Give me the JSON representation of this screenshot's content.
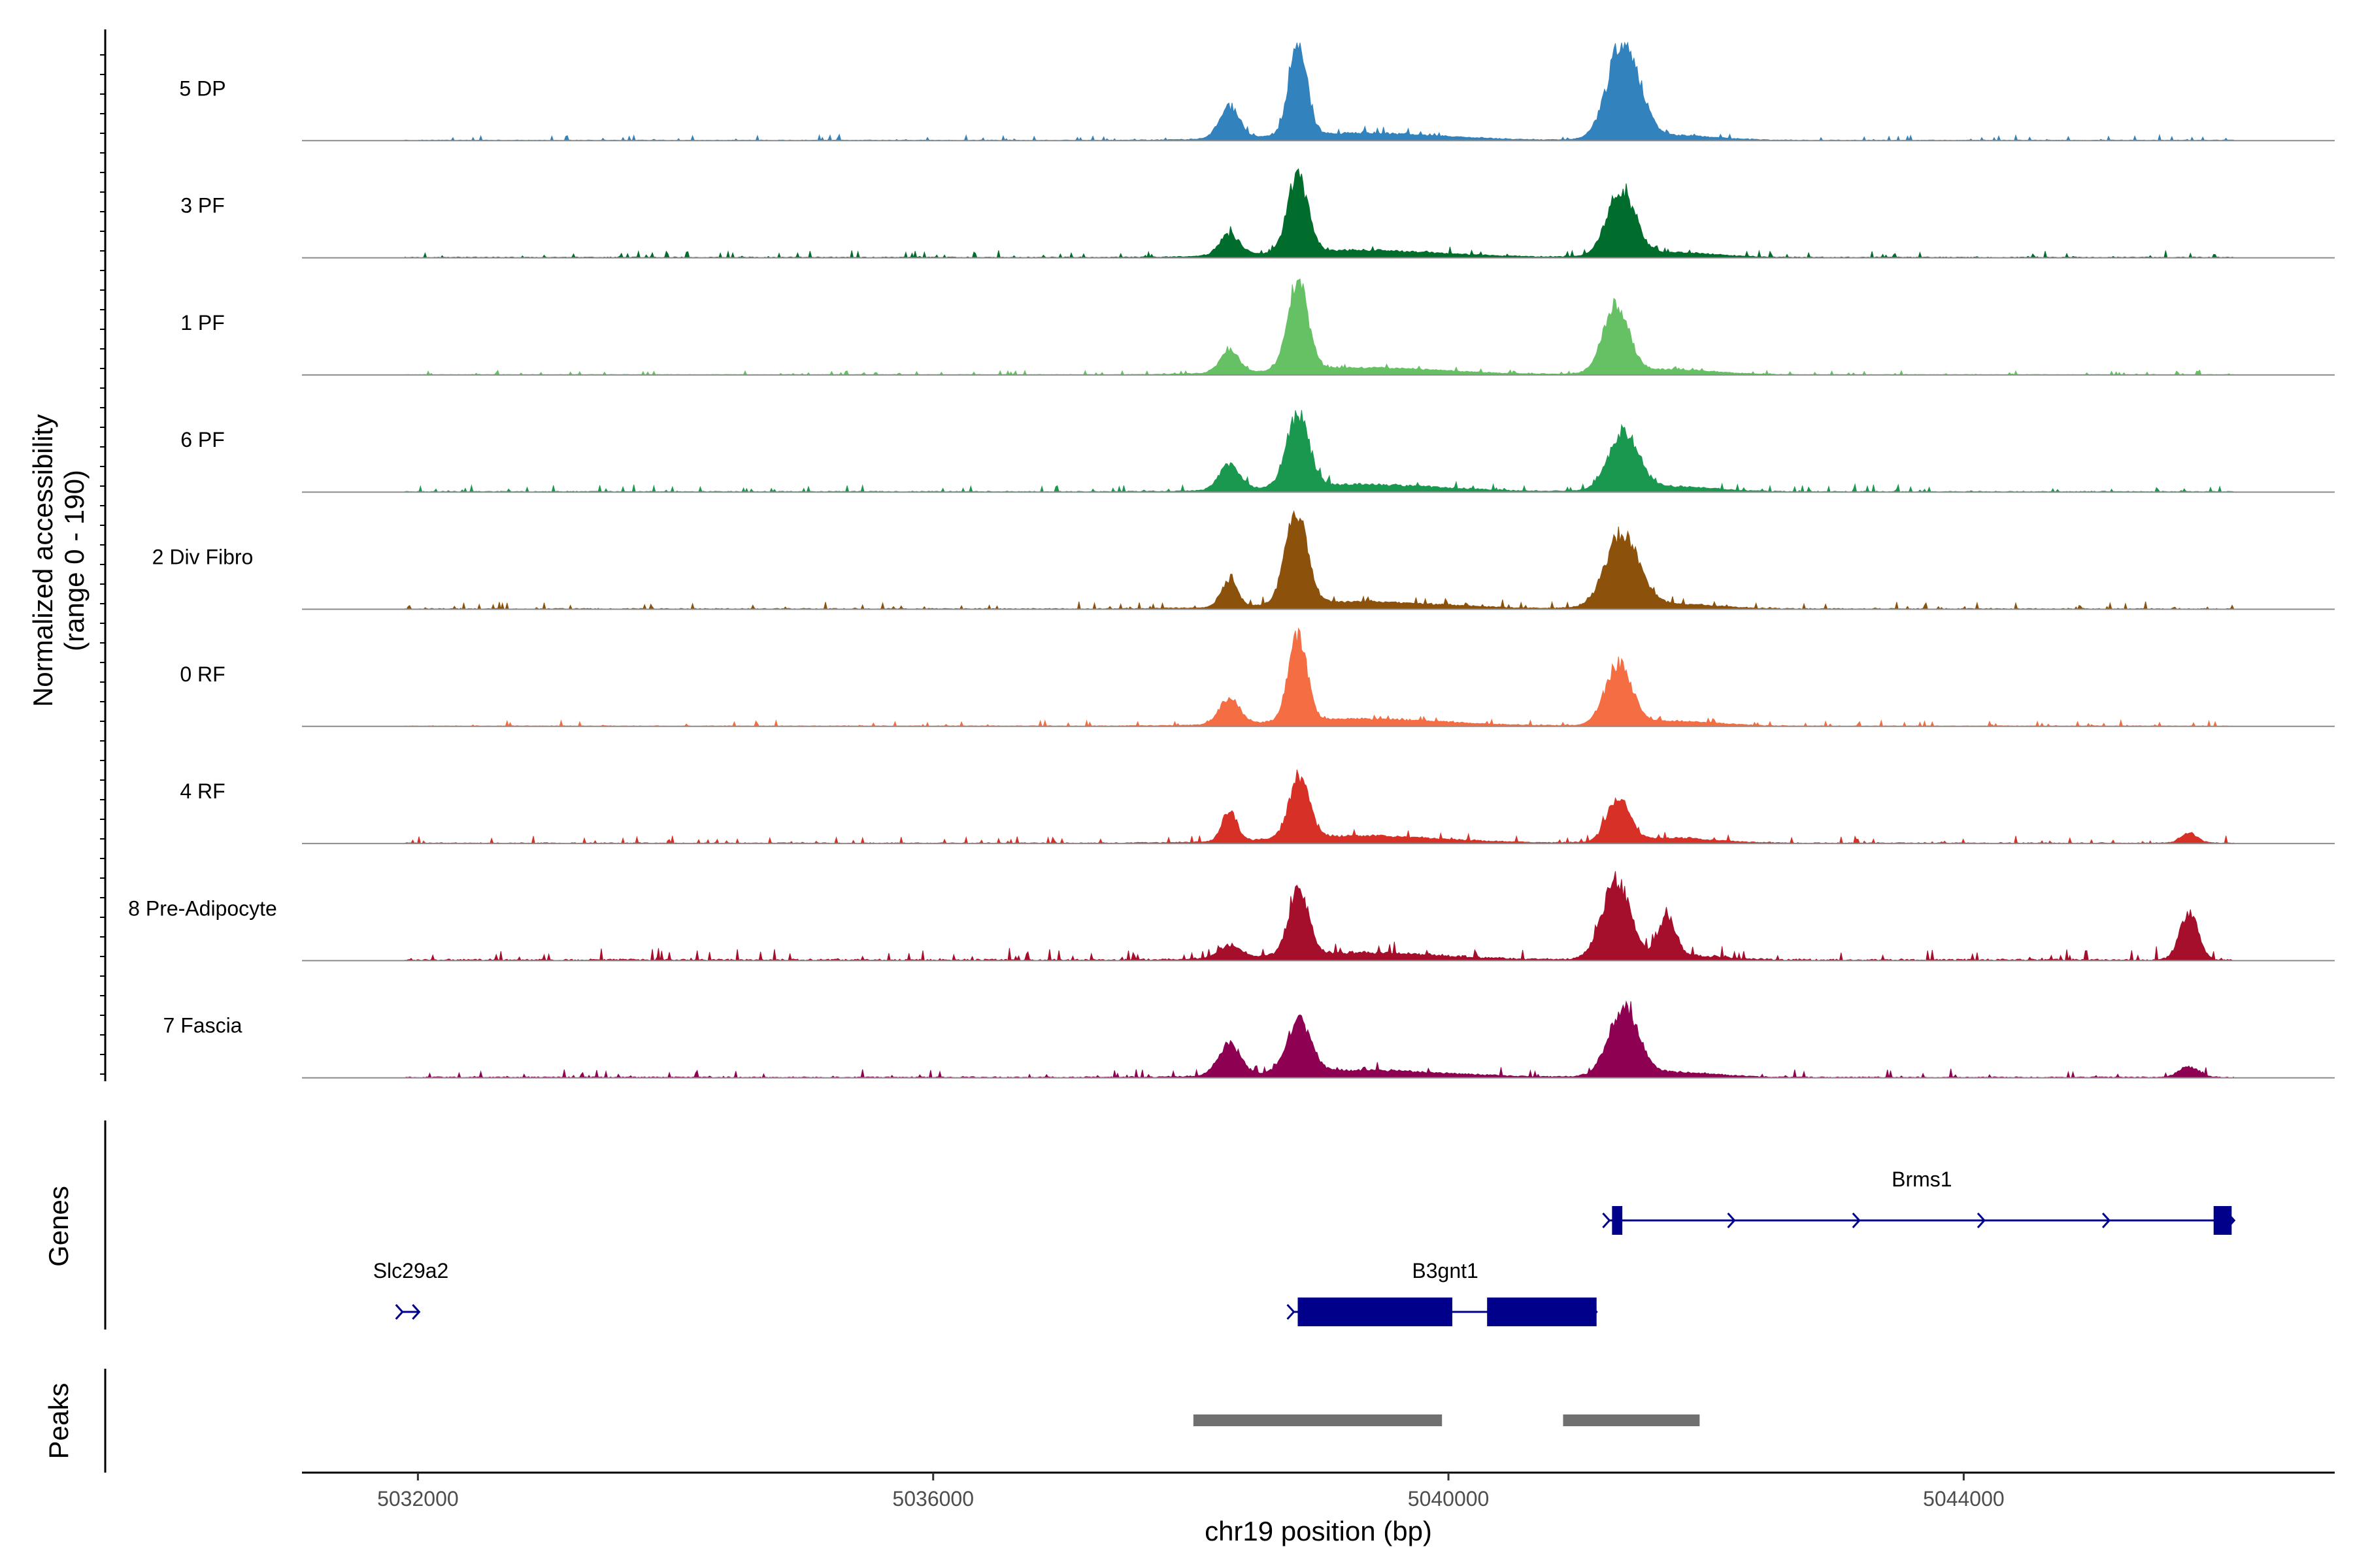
{
  "chart_data": {
    "type": "area",
    "title": "",
    "ylabel": "Normalized accessibility\n(range 0 - 190)",
    "ylabel_lines": [
      "Normalized accessibility",
      "(range 0 - 190)"
    ],
    "xlabel": "chr19 position (bp)",
    "xlim": [
      5031100,
      5046880
    ],
    "ylim": [
      0,
      190
    ],
    "x_ticks": [
      5032000,
      5036000,
      5040000,
      5044000
    ],
    "x_tick_labels": [
      "5032000",
      "5036000",
      "5040000",
      "5044000"
    ],
    "peak_centers": [
      5038280,
      5038800,
      5041350
    ],
    "series": [
      {
        "name": "5 DP",
        "color": "#3182BD",
        "start": 5031900,
        "end": 5046100,
        "peaks": [
          [
            5038300,
            60,
            110
          ],
          [
            5038830,
            190,
            95
          ],
          [
            5041360,
            190,
            170
          ]
        ],
        "noise": 8
      },
      {
        "name": "3 PF",
        "color": "#006D2C",
        "start": 5031900,
        "end": 5046100,
        "peaks": [
          [
            5038300,
            40,
            110
          ],
          [
            5038830,
            150,
            110
          ],
          [
            5041340,
            125,
            150
          ]
        ],
        "noise": 10
      },
      {
        "name": "1 PF",
        "color": "#66C164",
        "start": 5031900,
        "end": 5046100,
        "peaks": [
          [
            5038300,
            45,
            100
          ],
          [
            5038830,
            170,
            110
          ],
          [
            5041300,
            130,
            140
          ]
        ],
        "noise": 6
      },
      {
        "name": "6 PF",
        "color": "#1A9850",
        "start": 5031900,
        "end": 5046100,
        "peaks": [
          [
            5038300,
            50,
            110
          ],
          [
            5038830,
            140,
            120
          ],
          [
            5041360,
            110,
            160
          ]
        ],
        "noise": 10
      },
      {
        "name": "2 Div Fibro",
        "color": "#8C510A",
        "start": 5031900,
        "end": 5046100,
        "peaks": [
          [
            5038300,
            50,
            90
          ],
          [
            5038820,
            175,
            120
          ],
          [
            5041350,
            140,
            180
          ]
        ],
        "noise": 10
      },
      {
        "name": "0 RF",
        "color": "#F46D43",
        "start": 5031900,
        "end": 5046100,
        "peaks": [
          [
            5038300,
            50,
            110
          ],
          [
            5038830,
            165,
            100
          ],
          [
            5041320,
            115,
            140
          ]
        ],
        "noise": 8
      },
      {
        "name": "4 RF",
        "color": "#D73027",
        "start": 5031900,
        "end": 5046100,
        "peaks": [
          [
            5038300,
            60,
            80
          ],
          [
            5038840,
            115,
            110
          ],
          [
            5041320,
            85,
            120
          ],
          [
            5045750,
            20,
            90
          ]
        ],
        "noise": 10
      },
      {
        "name": "8 Pre-Adipocyte",
        "color": "#A50F2B",
        "start": 5031900,
        "end": 5046100,
        "peaks": [
          [
            5038300,
            25,
            120
          ],
          [
            5038840,
            125,
            110
          ],
          [
            5041300,
            150,
            150
          ],
          [
            5041700,
            75,
            90
          ],
          [
            5045750,
            90,
            100
          ]
        ],
        "noise": 18
      },
      {
        "name": "7 Fascia",
        "color": "#8E0152",
        "start": 5031900,
        "end": 5046100,
        "peaks": [
          [
            5038300,
            60,
            120
          ],
          [
            5038840,
            100,
            130
          ],
          [
            5041360,
            130,
            160
          ],
          [
            5045750,
            20,
            110
          ]
        ],
        "noise": 12
      }
    ]
  },
  "genes_panel": {
    "title": "Genes",
    "color": "#00008B",
    "genes": [
      {
        "name": "Brms1",
        "start": 5041250,
        "end": 5046100,
        "strand": "+",
        "row": 0,
        "exons": [
          [
            5041270,
            5041350
          ],
          [
            5045940,
            5046080
          ]
        ]
      },
      {
        "name": "Slc29a2",
        "start": 5031880,
        "end": 5032010,
        "strand": "+",
        "row": 1,
        "exons": []
      },
      {
        "name": "B3gnt1",
        "start": 5038800,
        "end": 5041150,
        "strand": "+",
        "row": 1,
        "exons": [
          [
            5038830,
            5040030
          ],
          [
            5040300,
            5041150
          ]
        ]
      }
    ]
  },
  "peaks_panel": {
    "title": "Peaks",
    "color": "#707070",
    "regions": [
      [
        5038020,
        5039950
      ],
      [
        5040890,
        5041950
      ]
    ]
  }
}
